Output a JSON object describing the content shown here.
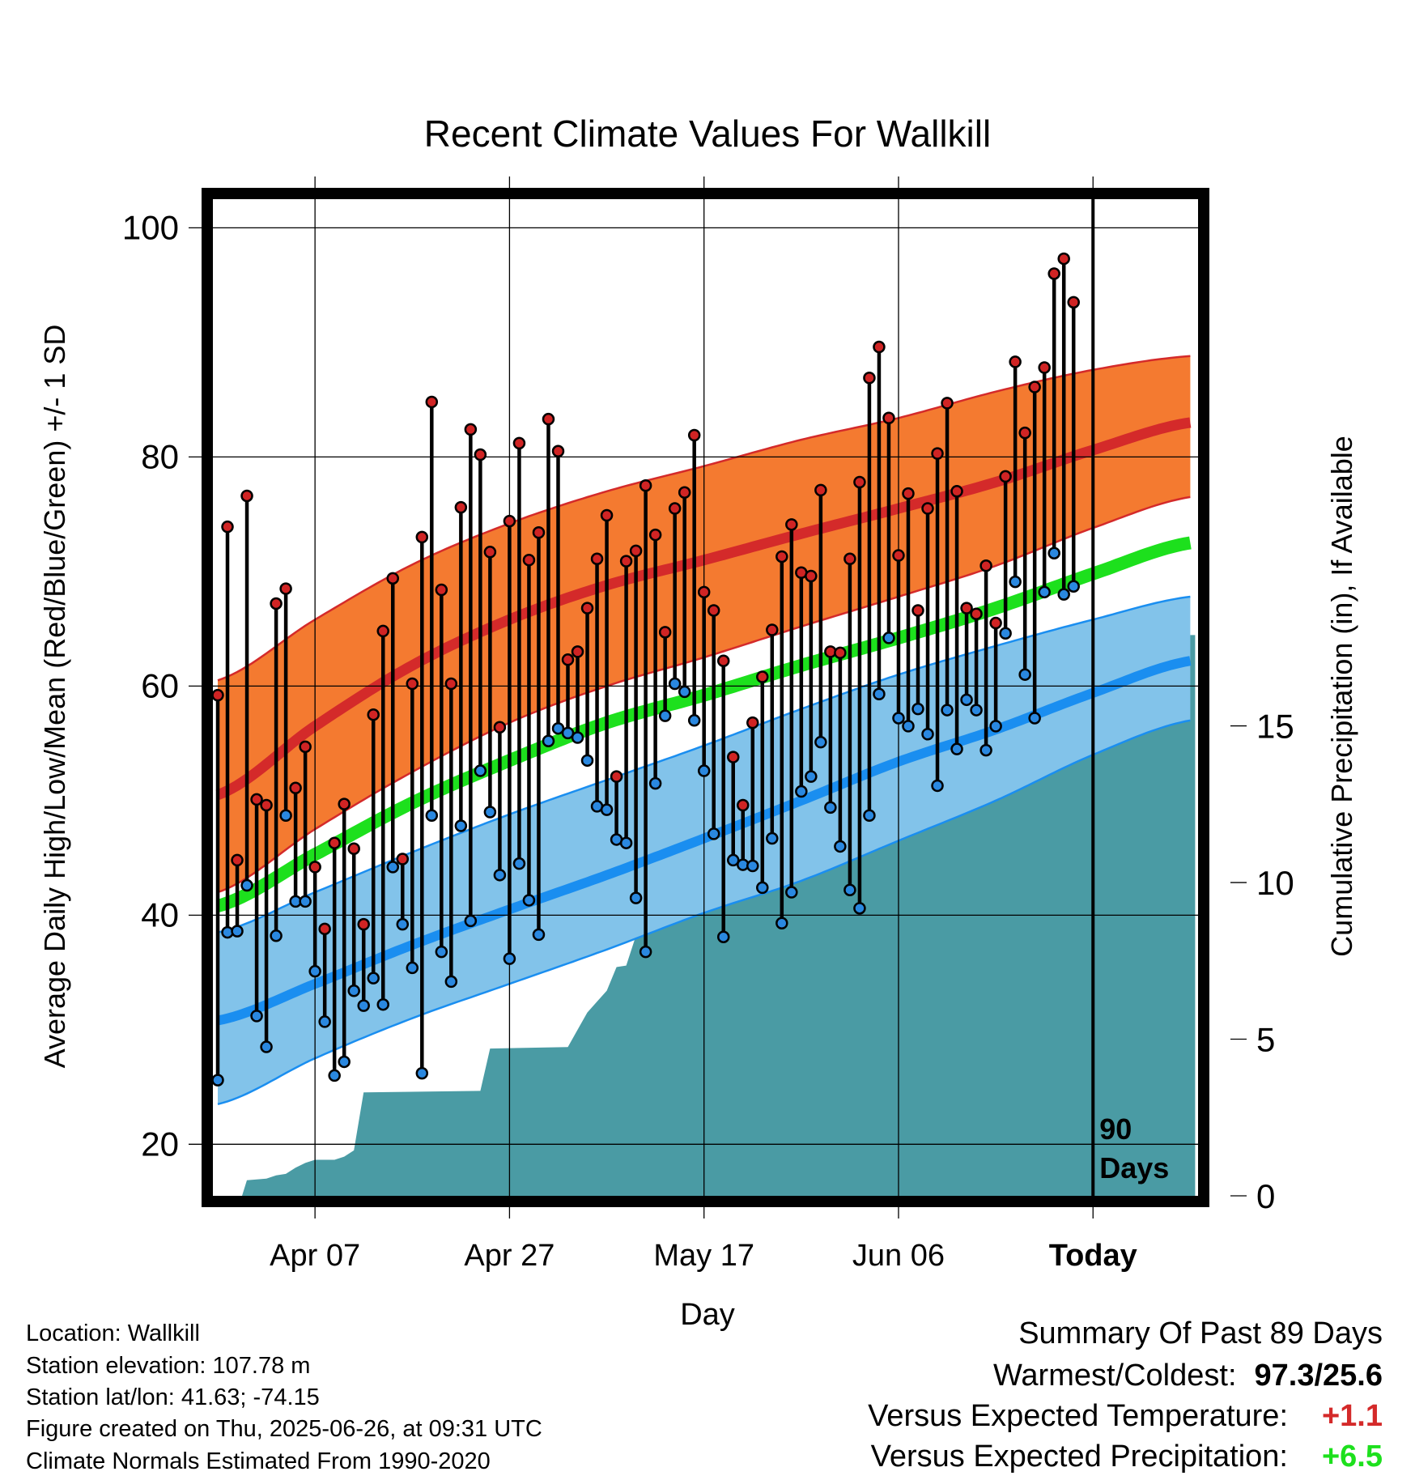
{
  "chart_data": {
    "type": "line",
    "title": "Recent Climate Values For Wallkill",
    "xlabel": "Day",
    "ylabel": "Average Daily High/Low/Mean (Red/Blue/Green) +/- 1 SD",
    "y2label": "Cumulative Precipitation (in), If Available",
    "x_tick_labels": [
      "Apr 07",
      "Apr 27",
      "May 17",
      "Jun 06",
      "Today"
    ],
    "x_tick_days": [
      10,
      30,
      50,
      70,
      90
    ],
    "xlim": [
      -0.5,
      100.8
    ],
    "ylim": [
      15.5,
      102.5
    ],
    "y_ticks": [
      20,
      40,
      60,
      80,
      100
    ],
    "y2_ticks": [
      0,
      5,
      10,
      15
    ],
    "y2lim": [
      0,
      30
    ],
    "grid": true,
    "today_marker_day": 90,
    "today_label": [
      "90",
      "Days"
    ],
    "normals": {
      "days": [
        0,
        10,
        20,
        30,
        40,
        50,
        60,
        70,
        80,
        90,
        100
      ],
      "normal_high": [
        50.5,
        56.5,
        61.8,
        65.8,
        68.8,
        71.0,
        73.3,
        75.5,
        77.8,
        80.6,
        83.0
      ],
      "high_plus_sd": [
        60.5,
        65.8,
        70.6,
        74.2,
        77.0,
        79.2,
        81.5,
        83.4,
        85.7,
        87.6,
        88.8
      ],
      "high_minus_sd": [
        42.0,
        47.5,
        52.5,
        56.8,
        60.0,
        62.5,
        65.2,
        67.8,
        70.5,
        73.8,
        76.5
      ],
      "normal_mean": [
        40.8,
        45.3,
        49.8,
        53.5,
        56.8,
        59.2,
        61.8,
        64.2,
        66.8,
        69.8,
        72.5
      ],
      "normal_low": [
        30.8,
        34.0,
        37.4,
        40.5,
        43.5,
        46.7,
        50.0,
        53.4,
        56.2,
        59.4,
        62.2
      ],
      "low_plus_sd": [
        38.5,
        42.0,
        45.5,
        48.8,
        51.8,
        54.8,
        58.0,
        61.0,
        63.5,
        65.8,
        67.8
      ],
      "low_minus_sd": [
        23.5,
        27.5,
        31.0,
        34.0,
        37.0,
        40.2,
        43.0,
        46.5,
        50.0,
        54.0,
        57.0
      ]
    },
    "daily_high": [
      59.2,
      73.9,
      44.8,
      76.6,
      50.1,
      49.6,
      67.2,
      68.5,
      51.1,
      54.7,
      44.2,
      38.8,
      46.3,
      49.7,
      45.8,
      39.2,
      57.5,
      64.8,
      69.4,
      44.9,
      60.2,
      73.0,
      84.8,
      68.4,
      60.2,
      75.6,
      82.4,
      80.2,
      71.7,
      56.4,
      74.4,
      81.2,
      71.0,
      73.4,
      83.3,
      80.5,
      62.3,
      63.0,
      66.8,
      71.1,
      74.9,
      52.1,
      70.9,
      71.8,
      77.5,
      73.2,
      64.7,
      75.5,
      76.9,
      81.9,
      68.2,
      66.6,
      62.2,
      53.8,
      49.6,
      56.8,
      60.8,
      64.9,
      71.3,
      74.1,
      69.9,
      69.6,
      77.1,
      63.0,
      62.9,
      71.1,
      77.8,
      86.9,
      89.6,
      83.4,
      71.4,
      76.8,
      66.6,
      75.5,
      80.3,
      84.7,
      77.0,
      66.8,
      66.3,
      70.5,
      65.5,
      78.3,
      88.3,
      82.1,
      86.1,
      87.8,
      96.0,
      97.3,
      93.5
    ],
    "daily_low": [
      25.6,
      38.5,
      38.6,
      42.6,
      31.2,
      28.5,
      38.2,
      48.7,
      41.2,
      41.2,
      35.1,
      30.7,
      26.0,
      27.2,
      33.4,
      32.1,
      34.5,
      32.2,
      44.2,
      39.2,
      35.4,
      26.2,
      48.7,
      36.8,
      34.2,
      47.8,
      39.5,
      52.6,
      49.0,
      43.5,
      36.2,
      44.5,
      41.3,
      38.3,
      55.2,
      56.3,
      55.9,
      55.5,
      53.5,
      49.5,
      49.2,
      46.6,
      46.3,
      41.5,
      36.8,
      51.5,
      57.4,
      60.2,
      59.5,
      57.0,
      52.6,
      47.1,
      38.1,
      44.8,
      44.4,
      44.3,
      42.4,
      46.7,
      39.3,
      42.0,
      50.8,
      52.1,
      55.1,
      49.4,
      46.0,
      42.2,
      40.6,
      48.7,
      59.3,
      64.2,
      57.2,
      56.5,
      58.0,
      55.8,
      51.3,
      57.9,
      54.5,
      58.8,
      57.9,
      54.4,
      56.5,
      64.6,
      69.1,
      61.0,
      57.2,
      68.2,
      71.6,
      68.0,
      68.7
    ],
    "cumulative_precip_steps": [
      [
        0,
        0
      ],
      [
        2.5,
        0
      ],
      [
        3,
        0.5
      ],
      [
        5,
        0.55
      ],
      [
        6,
        0.65
      ],
      [
        7,
        0.7
      ],
      [
        8,
        0.9
      ],
      [
        9,
        1.05
      ],
      [
        10,
        1.15
      ],
      [
        12,
        1.15
      ],
      [
        13,
        1.25
      ],
      [
        14,
        1.45
      ],
      [
        15,
        3.3
      ],
      [
        27,
        3.35
      ],
      [
        28,
        4.7
      ],
      [
        36,
        4.75
      ],
      [
        37,
        5.3
      ],
      [
        38,
        5.85
      ],
      [
        39,
        6.2
      ],
      [
        40,
        6.55
      ],
      [
        41,
        7.3
      ],
      [
        42,
        7.35
      ],
      [
        43,
        8.3
      ],
      [
        44,
        9.7
      ],
      [
        46,
        9.75
      ],
      [
        47,
        9.9
      ],
      [
        48,
        10.3
      ],
      [
        52,
        10.3
      ],
      [
        53,
        10.7
      ],
      [
        54,
        10.95
      ],
      [
        55,
        11.05
      ],
      [
        57,
        11.05
      ],
      [
        58,
        11.1
      ],
      [
        62,
        11.15
      ],
      [
        63,
        11.2
      ],
      [
        64,
        13.7
      ],
      [
        67,
        13.8
      ],
      [
        68,
        13.85
      ],
      [
        69,
        14.4
      ],
      [
        70,
        14.9
      ],
      [
        71,
        15.0
      ],
      [
        72,
        15.3
      ],
      [
        73,
        16.2
      ],
      [
        74,
        16.25
      ],
      [
        75,
        16.3
      ],
      [
        76,
        16.3
      ],
      [
        77,
        16.4
      ],
      [
        78,
        16.5
      ],
      [
        79,
        16.85
      ],
      [
        80,
        17.2
      ],
      [
        81,
        17.3
      ],
      [
        82,
        17.45
      ],
      [
        83,
        17.6
      ],
      [
        84,
        17.7
      ],
      [
        85,
        17.75
      ],
      [
        86,
        17.8
      ],
      [
        87,
        17.85
      ],
      [
        88,
        17.9
      ],
      [
        100.5,
        17.9
      ]
    ],
    "colors": {
      "high_band": "#f47a30",
      "high_line": "#d42a2a",
      "mean_line": "#1de01d",
      "low_band": "#82c3ea",
      "low_line": "#1a8ef0",
      "precip": "#4a9ba4",
      "high_point": "#d02424",
      "low_point": "#2a88e0"
    }
  },
  "meta": {
    "location": "Location: Wallkill",
    "elevation": "Station elevation: 107.78 m",
    "latlon": "Station lat/lon: 41.63; -74.15",
    "created": "Figure created on Thu, 2025-06-26, at 09:31 UTC",
    "normals": "Climate Normals Estimated From 1990-2020"
  },
  "summary": {
    "title": "Summary Of Past 89 Days",
    "warm_cold_label": "Warmest/Coldest:",
    "warm_cold_value": "97.3/25.6",
    "temp_label": "Versus Expected Temperature:",
    "temp_value": "+1.1",
    "temp_color": "#d42a2a",
    "precip_label": "Versus Expected Precipitation:",
    "precip_value": "+6.5",
    "precip_color": "#1de01d"
  }
}
